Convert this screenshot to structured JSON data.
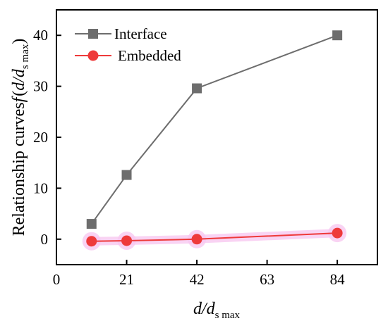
{
  "chart_data": {
    "type": "line",
    "xlabel": {
      "main": "d/d",
      "sub": "s max"
    },
    "ylabel": {
      "main": "Relationship curves",
      "func": "f",
      "paren_open": "(",
      "ratio": "d/d",
      "sub": "s max",
      "paren_close": ")"
    },
    "xlim": [
      0,
      96
    ],
    "ylim": [
      -5,
      45
    ],
    "x_ticks": [
      0,
      21,
      42,
      63,
      84
    ],
    "y_ticks": [
      0,
      10,
      20,
      30,
      40
    ],
    "legend_position": "top-left",
    "series": [
      {
        "name": "Interface",
        "color": "#6d6d6d",
        "marker": "square",
        "x": [
          10.5,
          21,
          42,
          84
        ],
        "y": [
          3.0,
          12.6,
          29.6,
          40.0
        ]
      },
      {
        "name": "Embedded",
        "color": "#ee3a3a",
        "marker": "circle",
        "x": [
          10.5,
          21,
          42,
          84
        ],
        "y": [
          -0.4,
          -0.3,
          0.0,
          1.2
        ]
      }
    ]
  }
}
